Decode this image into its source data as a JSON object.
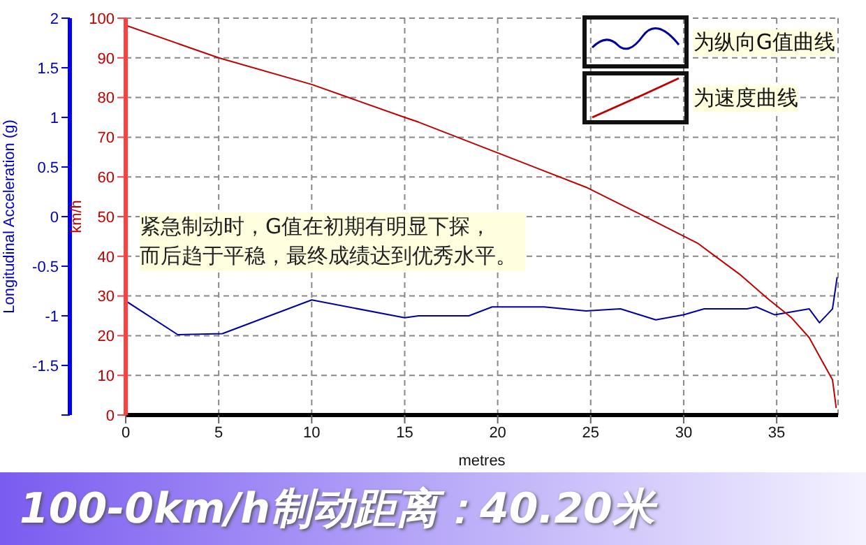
{
  "chart_data": {
    "type": "line",
    "title": "100-0km/h制动距离：40.20米",
    "xlabel": "metres",
    "ylabel": "Longitudinal Acceleration (g)",
    "y2label": "km/h",
    "annotations": [
      "紧急制动时，G值在初期有明显下探，而后趋于平稳，最终成绩达到优秀水平。"
    ],
    "xlim": [
      0,
      38.3
    ],
    "xticks": [
      0,
      5,
      10,
      15,
      20,
      25,
      30,
      35
    ],
    "ylim": [
      -2,
      2
    ],
    "yticks": [
      {
        "value": -2,
        "label": null
      },
      -1.5,
      -1,
      -0.5,
      0,
      0.5,
      1,
      1.5,
      2
    ],
    "y2lim": [
      0,
      100
    ],
    "y2ticks": [
      0,
      10,
      20,
      30,
      40,
      50,
      60,
      70,
      80,
      90,
      100
    ],
    "grid": true,
    "legend": "top right",
    "marker": "none",
    "line_style": "solid",
    "series": [
      {
        "name": "为纵向G值曲线",
        "color": "#0000a0",
        "x": [
          0,
          2.8,
          5.2,
          10,
          15,
          15.75,
          18.45,
          19.7,
          22.5,
          24.75,
          26.6,
          28.5,
          30,
          31.1,
          33.4,
          33.9,
          34.9,
          36.75,
          37.3,
          38,
          38.25
        ],
        "values": [
          -0.85,
          -1.19,
          -1.18,
          -0.84,
          -1.02,
          -1,
          -1,
          -0.91,
          -0.91,
          -0.95,
          -0.93,
          -1.04,
          -0.99,
          -0.93,
          -0.93,
          -0.91,
          -0.99,
          -0.93,
          -1.07,
          -0.93,
          -0.61
        ]
      },
      {
        "name": "为速度曲线",
        "color": "#c00000",
        "axis": "y2",
        "x": [
          0,
          5,
          10,
          15,
          15.75,
          20.25,
          24.75,
          28.1,
          30.75,
          33,
          34.5,
          35.8,
          36.75,
          37.5,
          38,
          38.2
        ],
        "values": [
          98.2,
          90,
          83.3,
          75,
          73.8,
          65.6,
          57.4,
          49.6,
          43.3,
          35.5,
          29.4,
          24.5,
          19.5,
          13.1,
          8.9,
          1.8
        ]
      }
    ]
  }
}
